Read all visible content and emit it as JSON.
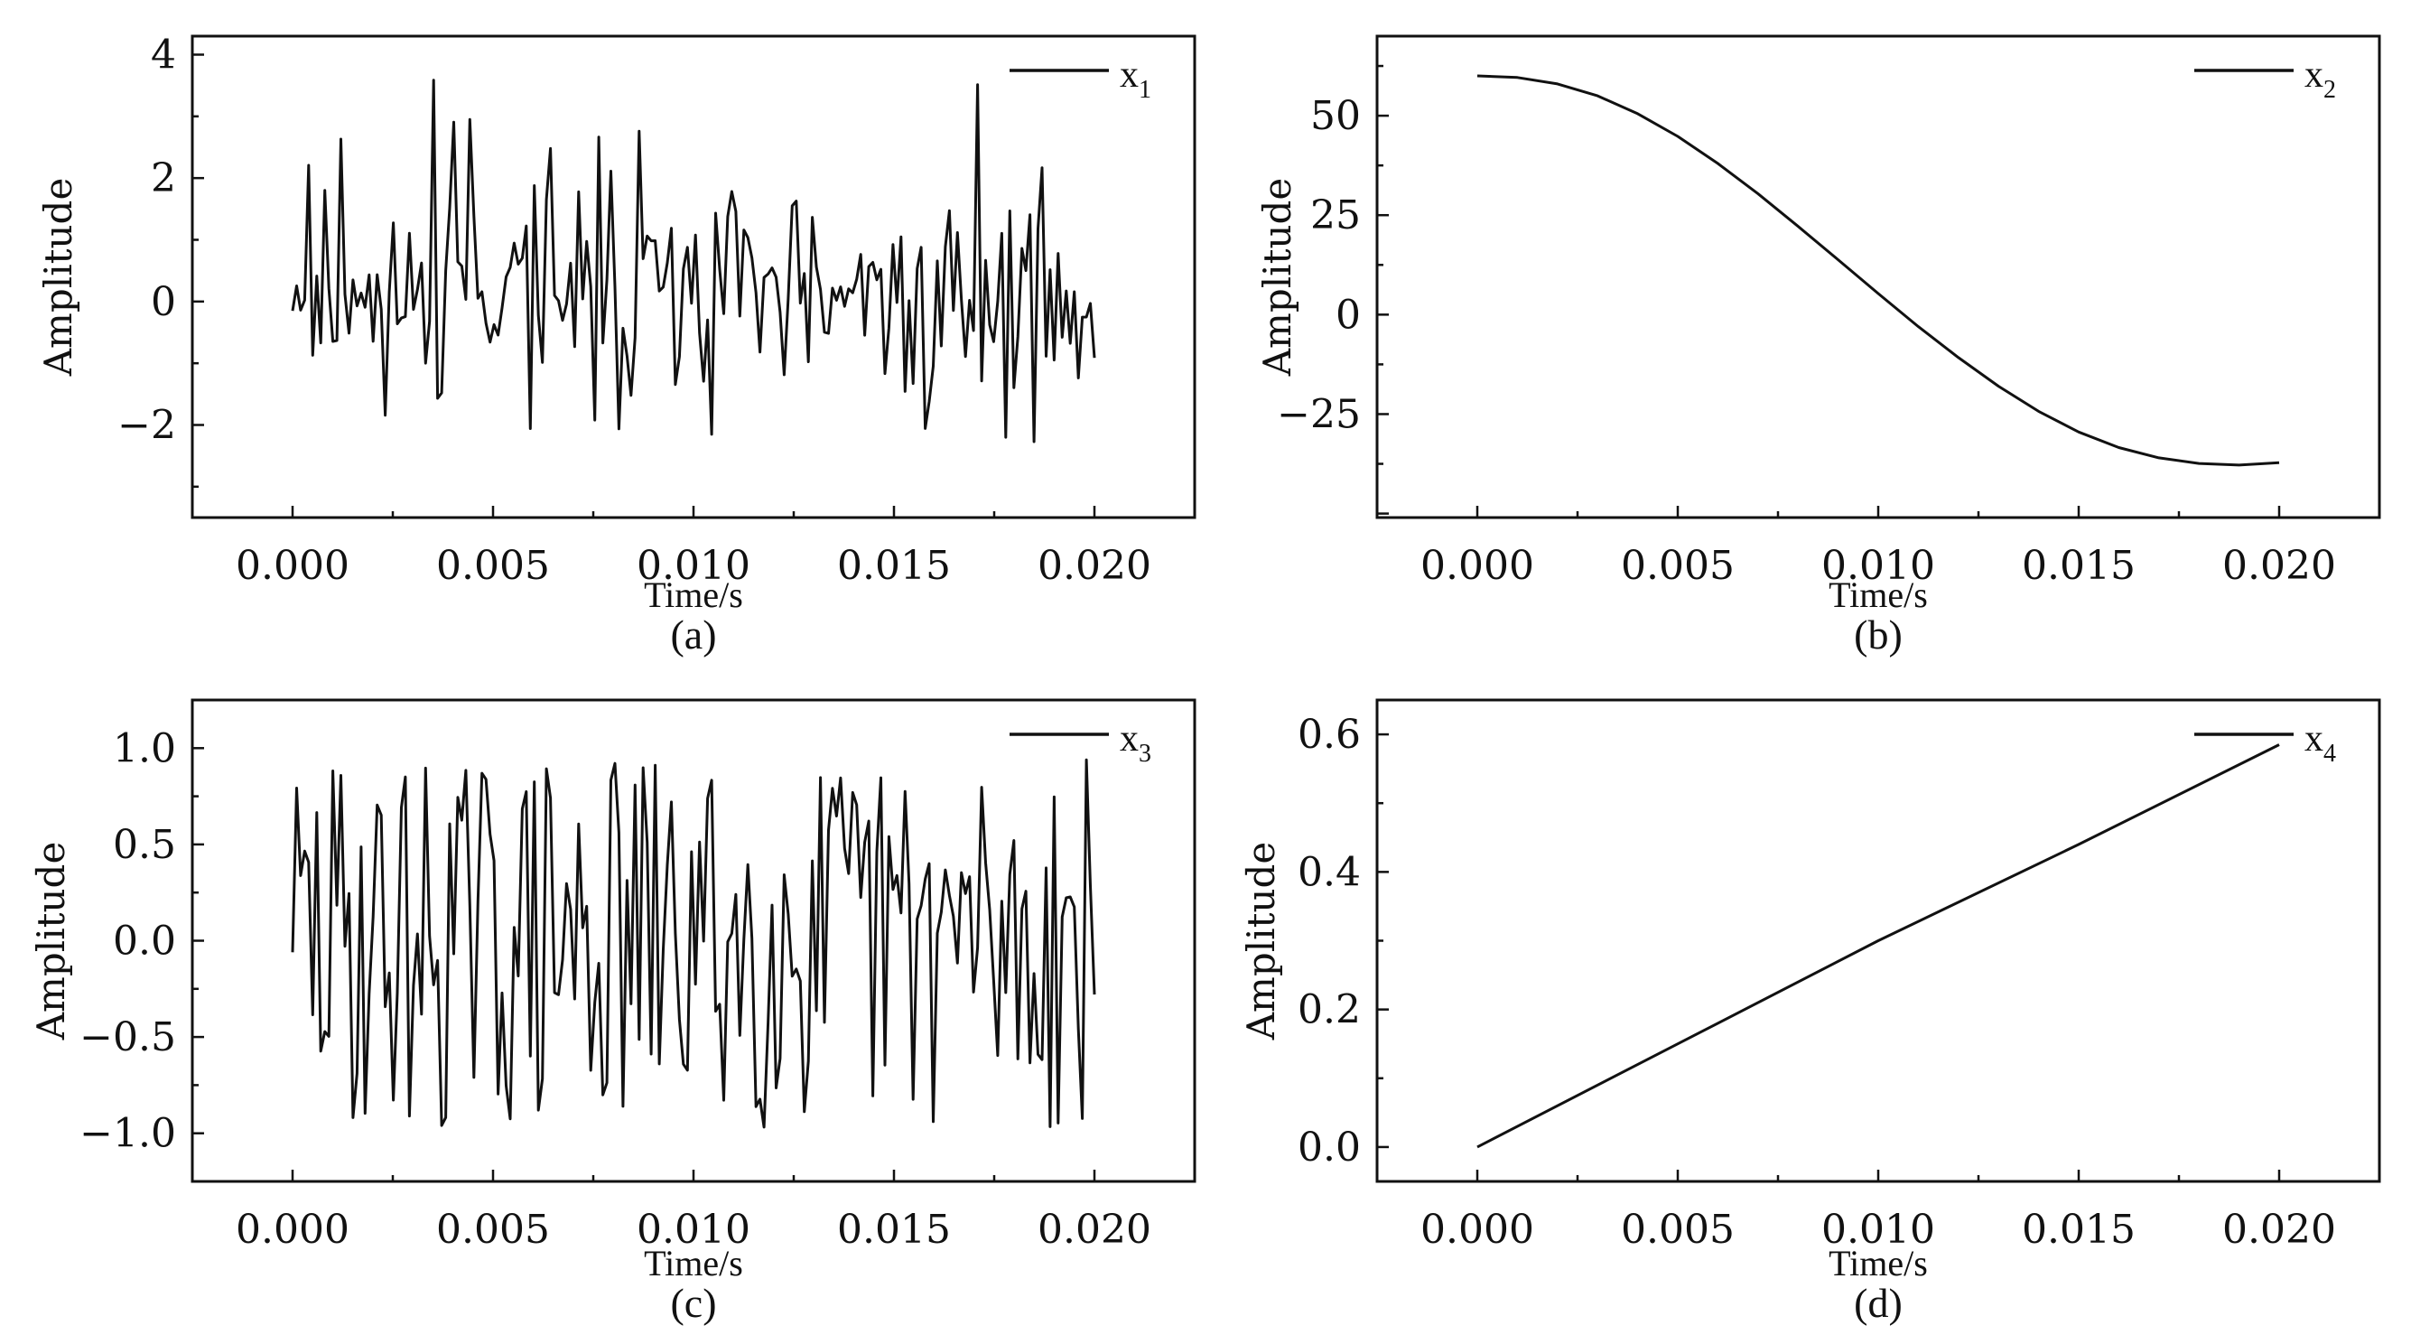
{
  "chart_data": [
    {
      "id": "a",
      "type": "line",
      "caption": "(a)",
      "xlabel": "Time/s",
      "ylabel": "Amplitude",
      "xlim": [
        -0.0025,
        0.0225
      ],
      "ylim": [
        -3.5,
        4.3
      ],
      "xticks": [
        0.0,
        0.005,
        0.01,
        0.015,
        0.02
      ],
      "xtick_labels": [
        "0.000",
        "0.005",
        "0.010",
        "0.015",
        "0.020"
      ],
      "yticks": [
        -2,
        0,
        2,
        4
      ],
      "ytick_labels": [
        "−2",
        "0",
        "2",
        "4"
      ],
      "legend": {
        "label": "x",
        "sub": "1",
        "position": "top-right"
      },
      "series": [
        {
          "name": "x1",
          "generator": "noise-spiky",
          "x_range": [
            0.0,
            0.02
          ],
          "n": 200,
          "seed": 11
        }
      ]
    },
    {
      "id": "b",
      "type": "line",
      "caption": "(b)",
      "xlabel": "Time/s",
      "ylabel": "Amplitude",
      "xlim": [
        -0.0025,
        0.0225
      ],
      "ylim": [
        -51,
        70
      ],
      "xticks": [
        0.0,
        0.005,
        0.01,
        0.015,
        0.02
      ],
      "xtick_labels": [
        "0.000",
        "0.005",
        "0.010",
        "0.015",
        "0.020"
      ],
      "yticks": [
        -25,
        0,
        25,
        50
      ],
      "ytick_labels": [
        "−25",
        "0",
        "25",
        "50"
      ],
      "legend": {
        "label": "x",
        "sub": "2",
        "position": "top-right"
      },
      "series": [
        {
          "name": "x2",
          "x": [
            0.0,
            0.001,
            0.002,
            0.003,
            0.004,
            0.005,
            0.006,
            0.007,
            0.008,
            0.009,
            0.01,
            0.011,
            0.012,
            0.013,
            0.014,
            0.015,
            0.016,
            0.017,
            0.018,
            0.019,
            0.02
          ],
          "y": [
            60.0,
            59.6,
            58.0,
            55.0,
            50.5,
            44.8,
            38.0,
            30.4,
            22.2,
            13.8,
            5.3,
            -3.0,
            -10.8,
            -18.0,
            -24.3,
            -29.5,
            -33.4,
            -36.0,
            -37.4,
            -37.8,
            -37.2
          ]
        }
      ]
    },
    {
      "id": "c",
      "type": "line",
      "caption": "(c)",
      "xlabel": "Time/s",
      "ylabel": "Amplitude",
      "xlim": [
        -0.0025,
        0.0225
      ],
      "ylim": [
        -1.25,
        1.25
      ],
      "xticks": [
        0.0,
        0.005,
        0.01,
        0.015,
        0.02
      ],
      "xtick_labels": [
        "0.000",
        "0.005",
        "0.010",
        "0.015",
        "0.020"
      ],
      "yticks": [
        -1.0,
        -0.5,
        0.0,
        0.5,
        1.0
      ],
      "ytick_labels": [
        "−1.0",
        "−0.5",
        "0.0",
        "0.5",
        "1.0"
      ],
      "legend": {
        "label": "x",
        "sub": "3",
        "position": "top-right"
      },
      "series": [
        {
          "name": "x3",
          "generator": "noise-uniform",
          "x_range": [
            0.0,
            0.02
          ],
          "n": 200,
          "seed": 29
        }
      ]
    },
    {
      "id": "d",
      "type": "line",
      "caption": "(d)",
      "xlabel": "Time/s",
      "ylabel": "Amplitude",
      "xlim": [
        -0.0025,
        0.0225
      ],
      "ylim": [
        -0.05,
        0.65
      ],
      "xticks": [
        0.0,
        0.005,
        0.01,
        0.015,
        0.02
      ],
      "xtick_labels": [
        "0.000",
        "0.005",
        "0.010",
        "0.015",
        "0.020"
      ],
      "yticks": [
        0.0,
        0.2,
        0.4,
        0.6
      ],
      "ytick_labels": [
        "0.0",
        "0.2",
        "0.4",
        "0.6"
      ],
      "legend": {
        "label": "x",
        "sub": "4",
        "position": "top-right"
      },
      "series": [
        {
          "name": "x4",
          "x": [
            0.0,
            0.005,
            0.01,
            0.015,
            0.02
          ],
          "y": [
            0.0,
            0.15,
            0.3,
            0.44,
            0.585
          ]
        }
      ]
    }
  ]
}
